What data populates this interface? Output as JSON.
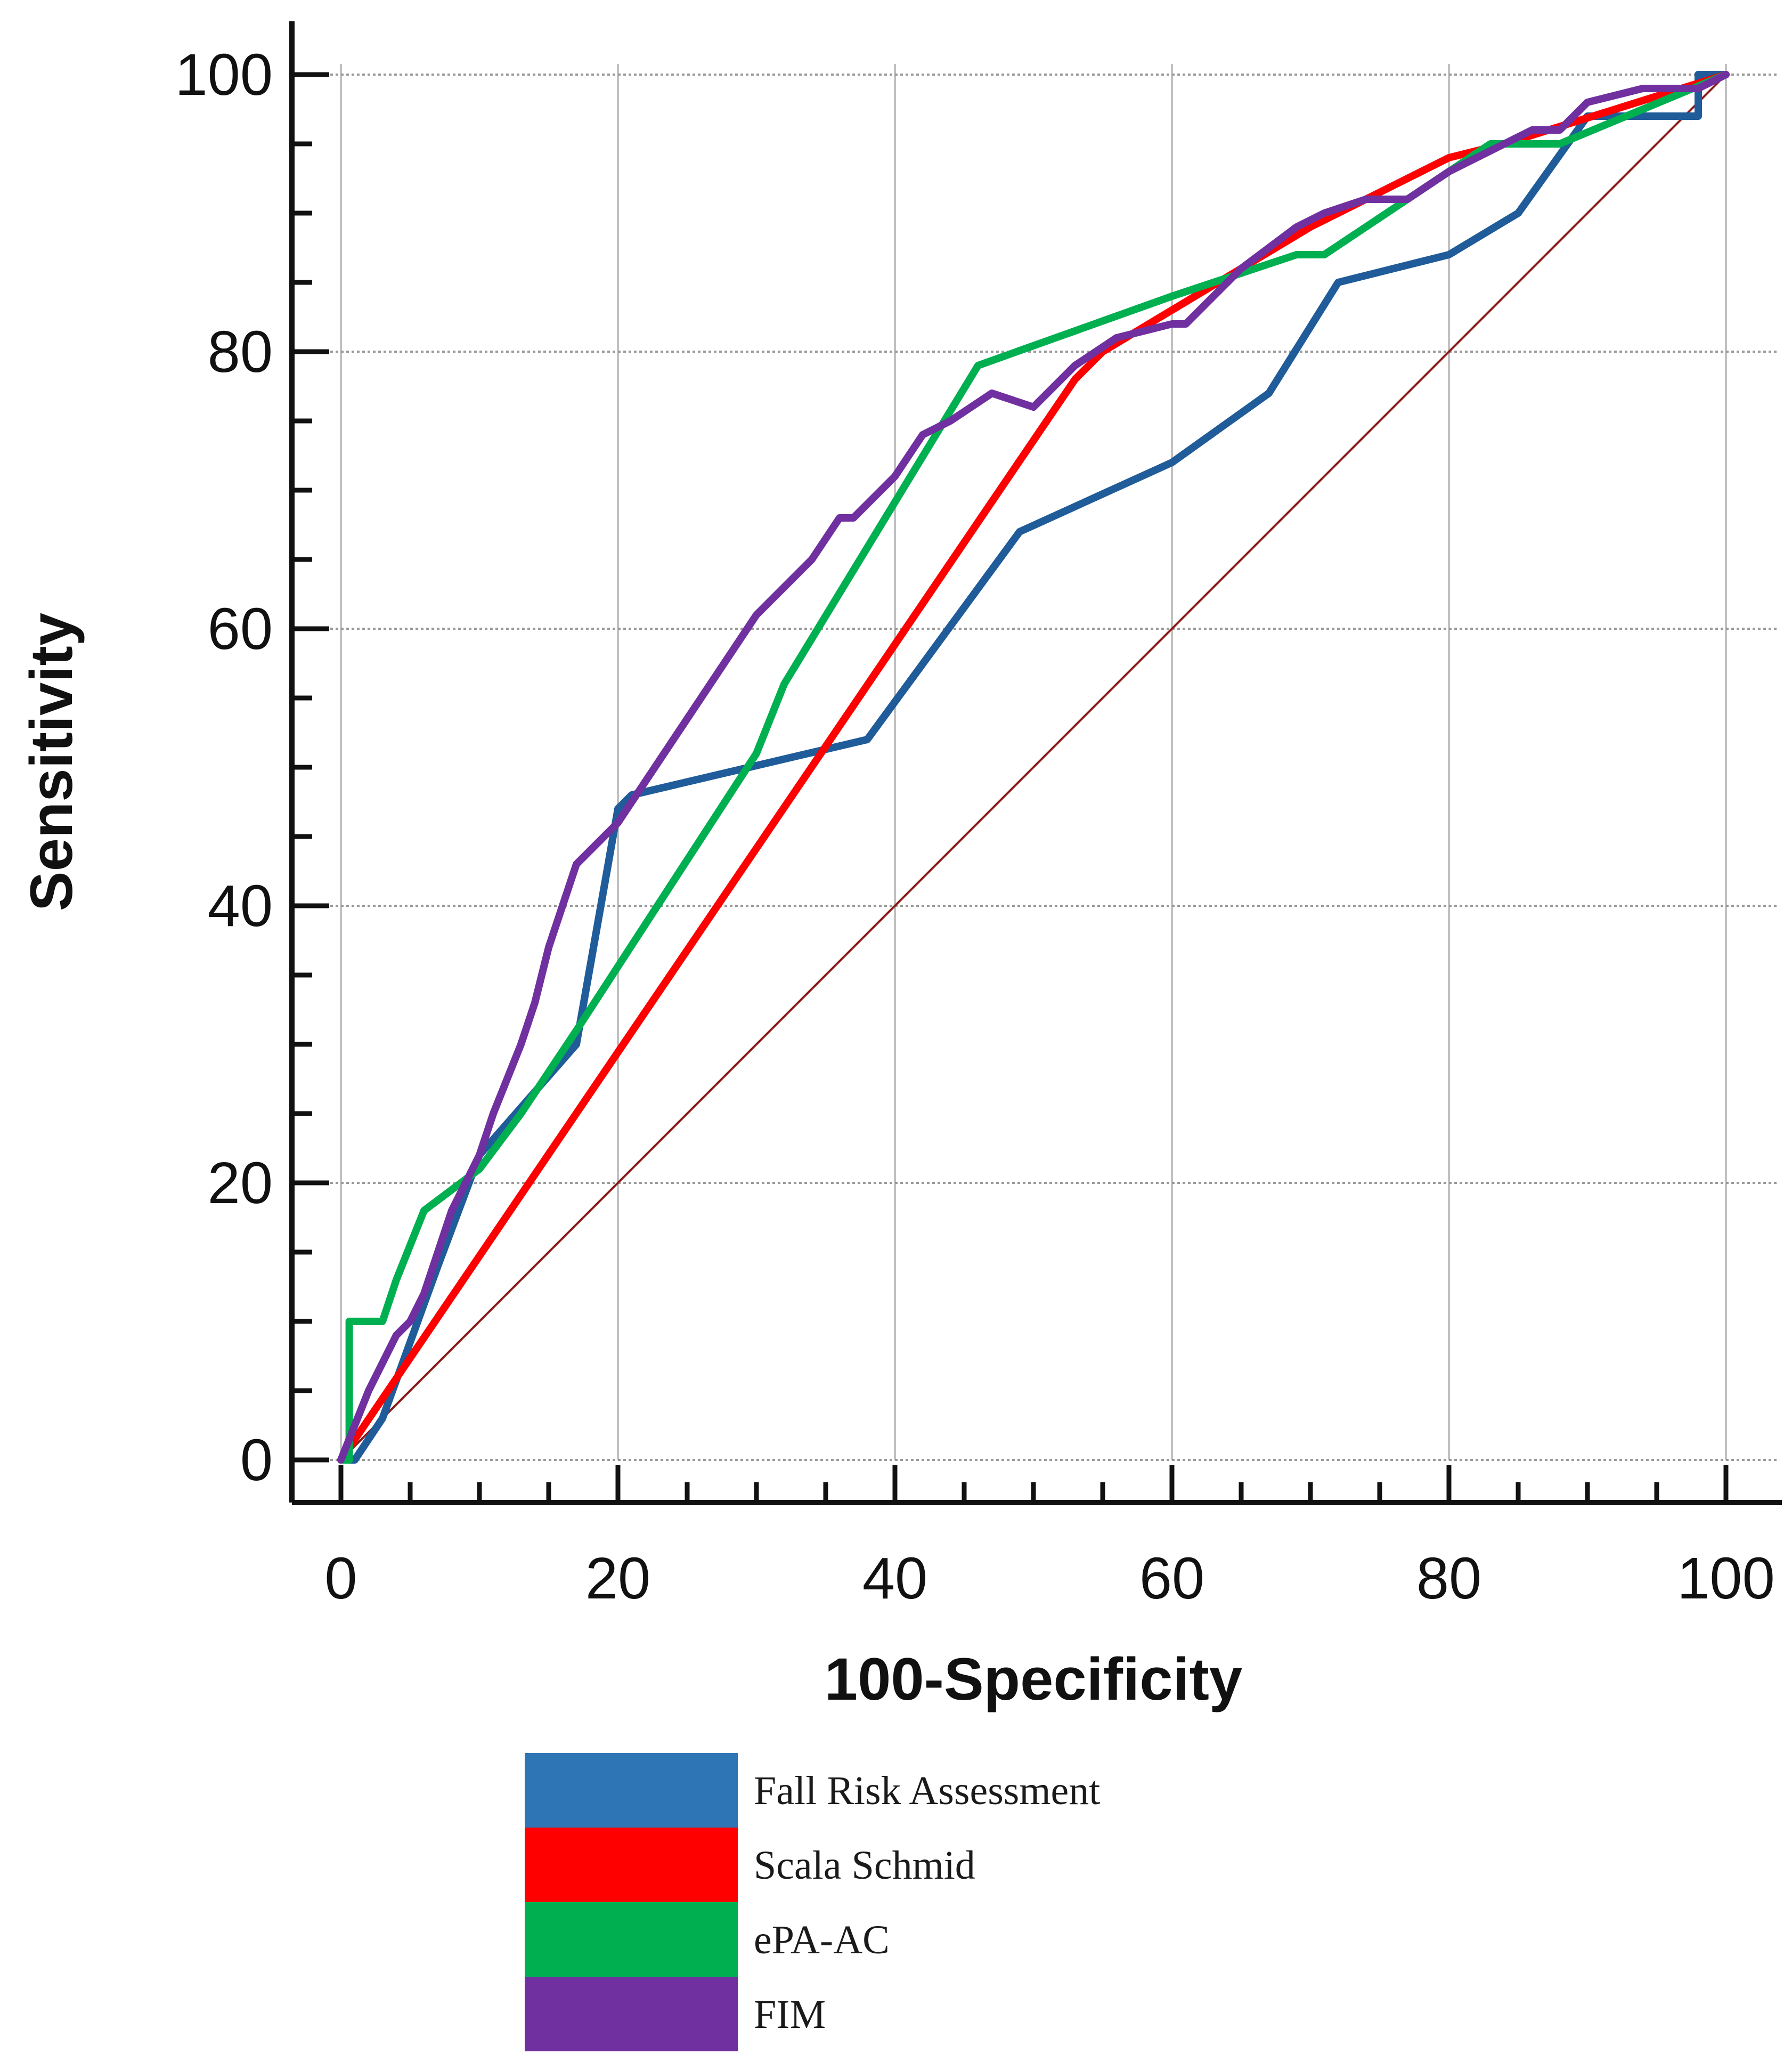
{
  "chart_data": {
    "type": "line",
    "title": "",
    "xlabel": "100-Specificity",
    "ylabel": "Sensitivity",
    "xlim": [
      0,
      100
    ],
    "ylim": [
      0,
      100
    ],
    "x_ticks": [
      "0",
      "20",
      "40",
      "60",
      "80",
      "100"
    ],
    "y_ticks": [
      "0",
      "20",
      "40",
      "60",
      "80",
      "100"
    ],
    "grid": true,
    "legend_position": "bottom-center",
    "reference_line": {
      "x": [
        0,
        100
      ],
      "y": [
        0,
        100
      ],
      "color": "#8B1A1A"
    },
    "series": [
      {
        "name": "Fall Risk Assessment",
        "color": "#1F5C99",
        "legend_color": "#2E75B6",
        "x": [
          0,
          1,
          3,
          7,
          10,
          17,
          20,
          21,
          38,
          49,
          60,
          67,
          72,
          80,
          85,
          90,
          98,
          98,
          100
        ],
        "y": [
          0,
          0,
          3,
          14,
          22,
          30,
          47,
          48,
          52,
          67,
          72,
          77,
          85,
          87,
          90,
          97,
          97,
          100,
          100
        ]
      },
      {
        "name": "Scala Schmid",
        "color": "#FF0000",
        "legend_color": "#FF0000",
        "x": [
          0,
          53,
          55,
          60,
          65,
          70,
          76,
          80,
          84,
          100
        ],
        "y": [
          0,
          78,
          80,
          83,
          86,
          89,
          92,
          94,
          95,
          100
        ]
      },
      {
        "name": "ePA-AC",
        "color": "#00B050",
        "legend_color": "#00B050",
        "x": [
          0,
          0.6,
          0.6,
          3,
          4,
          6,
          10,
          13,
          17,
          30,
          32,
          46,
          60,
          69,
          71,
          80,
          83,
          88,
          100
        ],
        "y": [
          0,
          0,
          10,
          10,
          13,
          18,
          21,
          25,
          31,
          51,
          56,
          79,
          84,
          87,
          87,
          93,
          95,
          95,
          100
        ]
      },
      {
        "name": "FIM",
        "color": "#7030A0",
        "legend_color": "#7030A0",
        "x": [
          0,
          2,
          3,
          4,
          5,
          6,
          7,
          8,
          9,
          10,
          11,
          13,
          14,
          15,
          16,
          17,
          19,
          20,
          22,
          24,
          26,
          28,
          30,
          32,
          34,
          36,
          37,
          38,
          40,
          42,
          44,
          47,
          50,
          53,
          56,
          60,
          61,
          62,
          65,
          69,
          71,
          74,
          77,
          80,
          84,
          86,
          88,
          89,
          90,
          94,
          98,
          100
        ],
        "y": [
          0,
          5,
          7,
          9,
          10,
          12,
          15,
          18,
          20,
          22,
          25,
          30,
          33,
          37,
          40,
          43,
          45,
          46,
          49,
          52,
          55,
          58,
          61,
          63,
          65,
          68,
          68,
          69,
          71,
          74,
          75,
          77,
          76,
          79,
          81,
          82,
          82,
          83,
          86,
          89,
          90,
          91,
          91,
          93,
          95,
          96,
          96,
          97,
          98,
          99,
          99,
          100
        ]
      }
    ]
  }
}
